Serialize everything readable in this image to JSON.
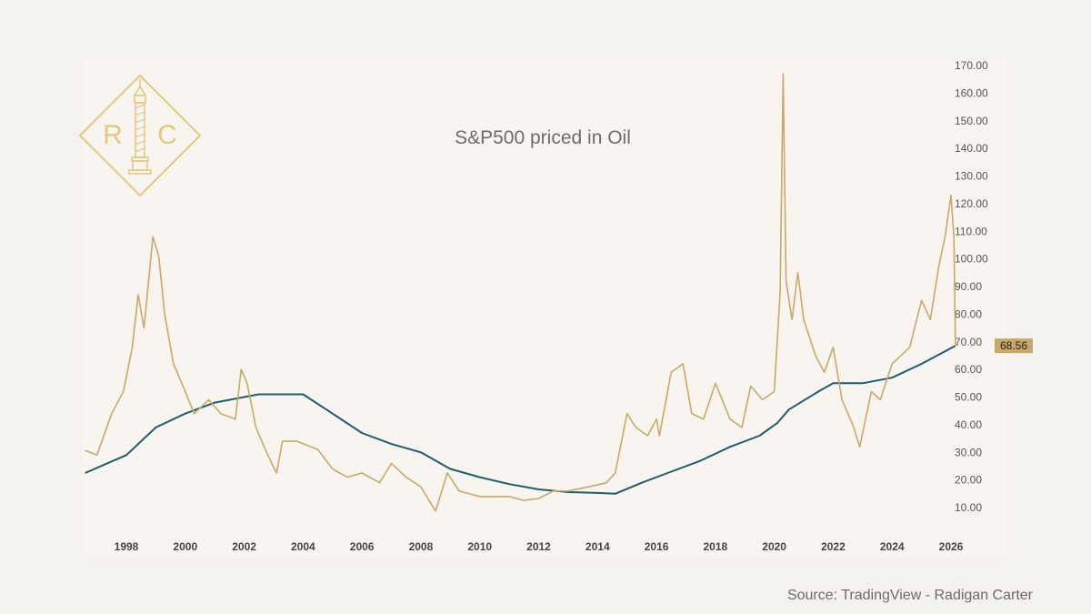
{
  "chart_data": {
    "type": "line",
    "title": "S&P500 priced in Oil",
    "source": "Source: TradingView - Radigan Carter",
    "logo_text": "RC",
    "xlabel": "",
    "ylabel": "",
    "x_ticks": [
      "1998",
      "2000",
      "2002",
      "2004",
      "2006",
      "2008",
      "2010",
      "2012",
      "2014",
      "2016",
      "2018",
      "2020",
      "2022",
      "2024",
      "2026"
    ],
    "y_ticks": [
      "10.00",
      "20.00",
      "30.00",
      "40.00",
      "50.00",
      "60.00",
      "70.00",
      "80.00",
      "90.00",
      "100.00",
      "110.00",
      "120.00",
      "130.00",
      "140.00",
      "150.00",
      "160.00",
      "170.00"
    ],
    "xlim": [
      1996.5,
      2026.3
    ],
    "ylim": [
      10,
      170
    ],
    "y_axis_side": "right",
    "grid": false,
    "last_value_label": "68.56",
    "colors": {
      "price": "#c8a968",
      "moving_average": "#1e5d6c",
      "label_bg": "#c8a968"
    },
    "series": [
      {
        "key": "price",
        "x": [
          1996.6,
          1997.0,
          1997.5,
          1997.9,
          1998.2,
          1998.4,
          1998.6,
          1998.9,
          1999.1,
          1999.3,
          1999.6,
          2000.0,
          2000.3,
          2000.8,
          2001.2,
          2001.7,
          2001.9,
          2002.1,
          2002.4,
          2002.8,
          2003.1,
          2003.3,
          2003.8,
          2004.5,
          2005.0,
          2005.5,
          2006.0,
          2006.6,
          2007.0,
          2007.5,
          2008.0,
          2008.5,
          2008.9,
          2009.3,
          2010.0,
          2011.0,
          2011.5,
          2012.0,
          2012.5,
          2013.0,
          2013.7,
          2014.3,
          2014.6,
          2015.0,
          2015.3,
          2015.7,
          2016.0,
          2016.1,
          2016.5,
          2016.9,
          2017.2,
          2017.6,
          2018.0,
          2018.5,
          2018.9,
          2019.2,
          2019.6,
          2020.0,
          2020.2,
          2020.3,
          2020.4,
          2020.6,
          2020.8,
          2021.0,
          2021.4,
          2021.7,
          2022.0,
          2022.3,
          2022.7,
          2022.9,
          2023.3,
          2023.6,
          2024.0,
          2024.3,
          2024.6,
          2025.0,
          2025.3,
          2025.6,
          2025.8,
          2026.0,
          2026.1,
          2026.15
        ],
        "y": [
          30.7,
          29,
          44,
          52,
          68,
          87,
          75,
          108,
          101,
          80,
          62,
          52,
          44,
          49,
          44,
          42,
          60,
          55,
          39,
          29,
          22.5,
          34,
          34,
          31,
          24,
          21,
          22.5,
          19,
          26,
          21,
          17.5,
          8.7,
          22.5,
          16,
          14,
          14,
          12.6,
          13.3,
          16,
          16,
          17.5,
          19,
          22.5,
          44,
          39,
          36,
          42,
          36,
          59,
          62,
          44,
          42,
          55,
          42,
          39,
          54,
          49,
          52,
          88,
          167,
          92,
          78,
          95,
          78,
          65,
          59,
          68,
          49,
          39,
          32,
          52,
          49,
          62,
          65,
          68,
          85,
          78,
          98,
          108,
          123,
          108,
          68.56
        ]
      },
      {
        "key": "moving_average",
        "x": [
          1996.6,
          1998,
          1999,
          2000,
          2001,
          2002,
          2002.5,
          2004,
          2005,
          2006,
          2007,
          2008,
          2009,
          2010,
          2011,
          2012,
          2013,
          2014,
          2014.6,
          2015.5,
          2016.5,
          2017.5,
          2018.5,
          2019.5,
          2020.1,
          2020.5,
          2021.5,
          2022,
          2023,
          2024,
          2025,
          2026.15
        ],
        "y": [
          22.5,
          29,
          39,
          44,
          48,
          50,
          51,
          51,
          44,
          37,
          33,
          30,
          24,
          21,
          18.5,
          16.6,
          15.6,
          15.3,
          15,
          19,
          23,
          27,
          32,
          36,
          40.6,
          45.5,
          52,
          55,
          55,
          57,
          62,
          68.56
        ]
      }
    ]
  }
}
